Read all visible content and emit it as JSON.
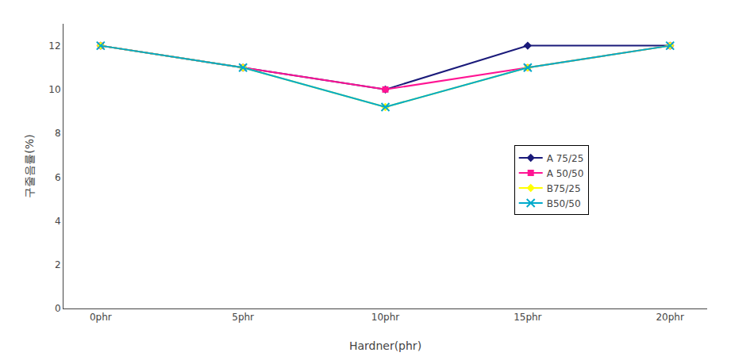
{
  "chart_data": {
    "type": "line",
    "xlabel": "Hardner(phr)",
    "ylabel": "구줄음률(%)",
    "categories": [
      "0phr",
      "5phr",
      "10phr",
      "15phr",
      "20phr"
    ],
    "series": [
      {
        "name": "A 75/25",
        "color": "#1a1a7a",
        "marker": "diamond",
        "values": [
          12.0,
          11.0,
          10.0,
          12.0,
          12.0
        ]
      },
      {
        "name": "A 50/50",
        "color": "#ff1493",
        "marker": "square",
        "values": [
          12.0,
          11.0,
          10.0,
          11.0,
          12.0
        ]
      },
      {
        "name": "B75/25",
        "color": "#ffff00",
        "marker": "diamond",
        "values": [
          12.0,
          11.0,
          9.2,
          11.0,
          12.0
        ]
      },
      {
        "name": "B50/50",
        "color": "#00aacc",
        "marker": "x",
        "values": [
          12.0,
          11.0,
          9.2,
          11.0,
          12.0
        ]
      }
    ],
    "ylim": [
      0,
      13
    ],
    "yticks": [
      0,
      2,
      4,
      6,
      8,
      10,
      12
    ],
    "grid": false,
    "legend": "right"
  }
}
